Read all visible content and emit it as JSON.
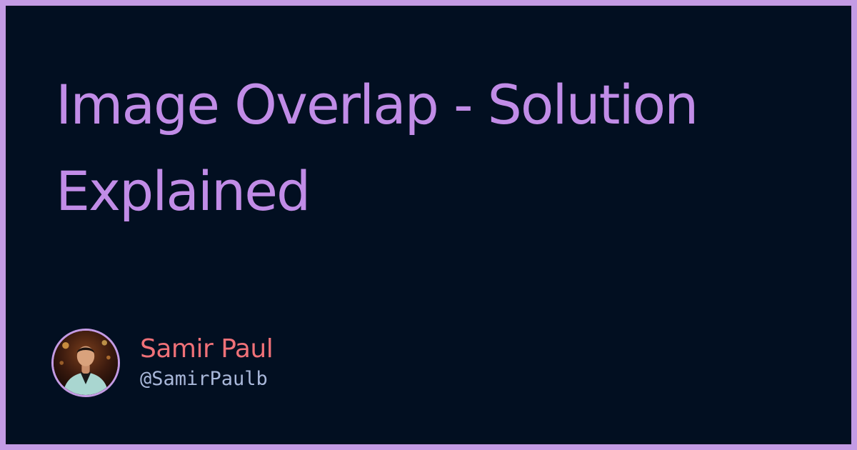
{
  "post": {
    "title": "Image Overlap - Solution Explained"
  },
  "author": {
    "name": "Samir Paul",
    "handle": "@SamirPaulb",
    "avatar_icon": "author-photo"
  },
  "colors": {
    "border": "#c49be4",
    "background": "#020f21",
    "title": "#c18ce7",
    "name": "#f07178",
    "handle": "#a9b8da"
  }
}
